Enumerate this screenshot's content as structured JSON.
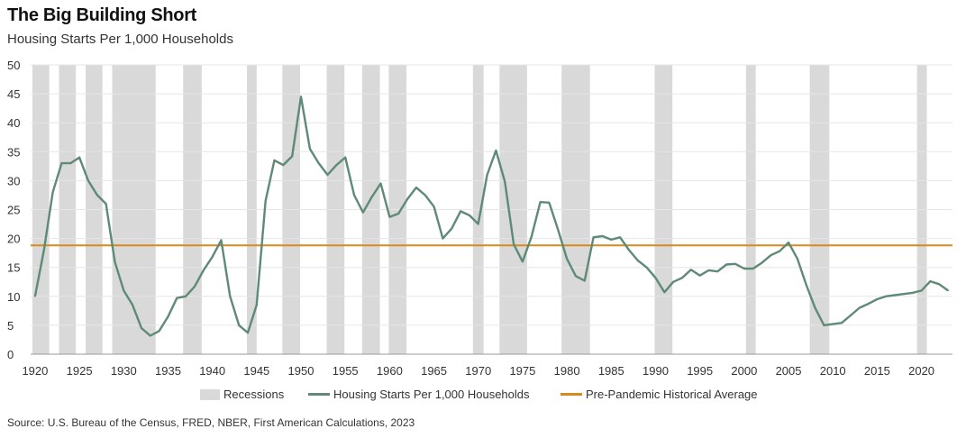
{
  "chart_data": {
    "type": "line",
    "title": "The Big Building Short",
    "subtitle": "Housing Starts Per 1,000 Households",
    "xlim": [
      1919.5,
      2023.5
    ],
    "ylim": [
      0,
      50
    ],
    "x_ticks": [
      1920,
      1925,
      1930,
      1935,
      1940,
      1945,
      1950,
      1955,
      1960,
      1965,
      1970,
      1975,
      1980,
      1985,
      1990,
      1995,
      2000,
      2005,
      2010,
      2015,
      2020
    ],
    "y_ticks": [
      0,
      5,
      10,
      15,
      20,
      25,
      30,
      35,
      40,
      45,
      50
    ],
    "grid": true,
    "recessions": [
      [
        1919.7,
        1921.6
      ],
      [
        1922.7,
        1924.6
      ],
      [
        1925.7,
        1927.6
      ],
      [
        1928.7,
        1933.6
      ],
      [
        1936.7,
        1938.8
      ],
      [
        1943.9,
        1945.0
      ],
      [
        1947.9,
        1949.9
      ],
      [
        1952.9,
        1954.9
      ],
      [
        1956.9,
        1958.9
      ],
      [
        1959.9,
        1961.9
      ],
      [
        1969.4,
        1970.6
      ],
      [
        1972.4,
        1975.5
      ],
      [
        1979.4,
        1982.6
      ],
      [
        1989.9,
        1991.9
      ],
      [
        2000.2,
        2001.3
      ],
      [
        2007.4,
        2009.6
      ],
      [
        2019.5,
        2020.6
      ]
    ],
    "series": [
      {
        "name": "Housing Starts Per 1,000 Households",
        "color": "#5e8a76",
        "x": [
          1920,
          1921,
          1922,
          1923,
          1924,
          1925,
          1926,
          1927,
          1928,
          1929,
          1930,
          1931,
          1932,
          1933,
          1934,
          1935,
          1936,
          1937,
          1938,
          1939,
          1940,
          1941,
          1942,
          1943,
          1944,
          1945,
          1946,
          1947,
          1948,
          1949,
          1950,
          1951,
          1952,
          1953,
          1954,
          1955,
          1956,
          1957,
          1958,
          1959,
          1960,
          1961,
          1962,
          1963,
          1964,
          1965,
          1966,
          1967,
          1968,
          1969,
          1970,
          1971,
          1972,
          1973,
          1974,
          1975,
          1976,
          1977,
          1978,
          1979,
          1980,
          1981,
          1982,
          1983,
          1984,
          1985,
          1986,
          1987,
          1988,
          1989,
          1990,
          1991,
          1992,
          1993,
          1994,
          1995,
          1996,
          1997,
          1998,
          1999,
          2000,
          2001,
          2002,
          2003,
          2004,
          2005,
          2006,
          2007,
          2008,
          2009,
          2010,
          2011,
          2012,
          2013,
          2014,
          2015,
          2016,
          2017,
          2018,
          2019,
          2020,
          2021,
          2022,
          2023
        ],
        "y": [
          10,
          18,
          28,
          33,
          33,
          34,
          30,
          27.5,
          26,
          16,
          11,
          8.5,
          4.5,
          3.2,
          4,
          6.5,
          9.7,
          10,
          11.7,
          14.5,
          16.8,
          19.7,
          10,
          5,
          3.7,
          8.5,
          26.5,
          33.5,
          32.7,
          34.2,
          44.5,
          35.5,
          33,
          31,
          32.7,
          34,
          27.5,
          24.5,
          27.2,
          29.5,
          23.7,
          24.3,
          26.8,
          28.8,
          27.5,
          25.5,
          20,
          21.7,
          24.7,
          24,
          22.5,
          31,
          35.2,
          29.8,
          19,
          16,
          20.3,
          26.3,
          26.2,
          21.5,
          16.5,
          13.5,
          12.7,
          20.2,
          20.4,
          19.8,
          20.2,
          18,
          16.2,
          15,
          13.2,
          10.7,
          12.5,
          13.2,
          14.6,
          13.6,
          14.5,
          14.3,
          15.5,
          15.6,
          14.8,
          14.8,
          15.8,
          17.1,
          17.8,
          19.3,
          16.5,
          12,
          8,
          5,
          5.2,
          5.4,
          6.7,
          8,
          8.7,
          9.5,
          10,
          10.2,
          10.4,
          10.6,
          11,
          12.6,
          12.1,
          11
        ]
      }
    ],
    "reference_line": {
      "name": "Pre-Pandemic Historical Average",
      "value": 18.8,
      "color": "#d98a1c"
    },
    "legend": {
      "position": "bottom-center",
      "items": [
        "Recessions",
        "Housing Starts Per 1,000 Households",
        "Pre-Pandemic Historical Average"
      ]
    },
    "source": "Source: U.S. Bureau of the Census, FRED, NBER, First American Calculations, 2023"
  }
}
